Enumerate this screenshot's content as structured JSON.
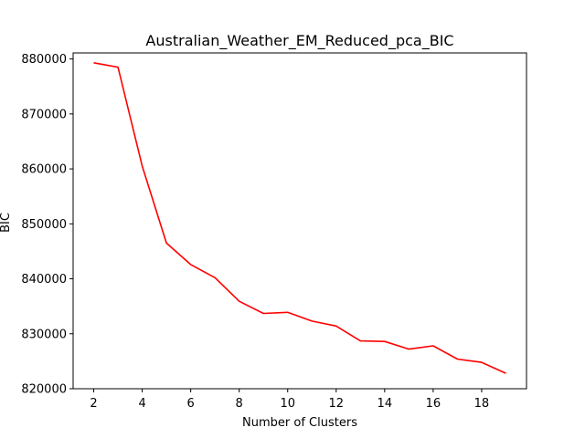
{
  "chart_data": {
    "type": "line",
    "title": "Australian_Weather_EM_Reduced_pca_BIC",
    "xlabel": "Number of Clusters",
    "ylabel": "BIC",
    "x": [
      2,
      3,
      4,
      5,
      6,
      7,
      8,
      9,
      10,
      11,
      12,
      13,
      14,
      15,
      16,
      17,
      18,
      19
    ],
    "series": [
      {
        "color": "#ff0000",
        "values": [
          879300,
          878500,
          860500,
          846500,
          842600,
          840200,
          835900,
          833700,
          833900,
          832300,
          831400,
          828700,
          828600,
          827200,
          827800,
          825400,
          824800,
          822800
        ]
      }
    ],
    "xlim": [
      1.15,
      19.85
    ],
    "ylim": [
      820000,
      881100
    ],
    "xticks": [
      2,
      4,
      6,
      8,
      10,
      12,
      14,
      16,
      18
    ],
    "yticks": [
      820000,
      830000,
      840000,
      850000,
      860000,
      870000,
      880000
    ],
    "xtick_labels": [
      "2",
      "4",
      "6",
      "8",
      "10",
      "12",
      "14",
      "16",
      "18"
    ],
    "ytick_labels": [
      "820000",
      "830000",
      "840000",
      "850000",
      "860000",
      "870000",
      "880000"
    ],
    "grid": false,
    "legend": false
  }
}
